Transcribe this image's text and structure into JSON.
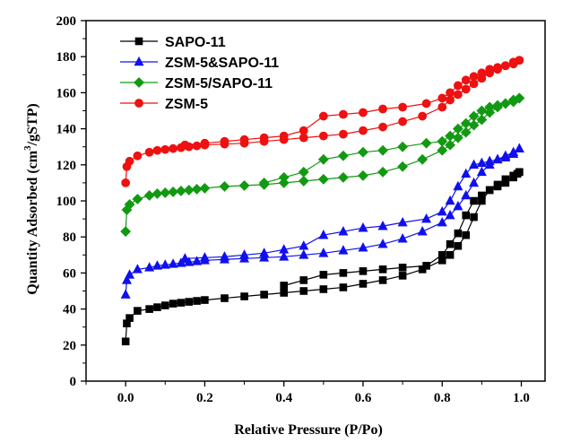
{
  "chart_data": {
    "type": "scatter",
    "xlabel": "Relative Pressure (P/Po)",
    "ylabel_main": "Quantity Adsorbed (cm",
    "ylabel_sup": "3",
    "ylabel_tail": "/gSTP)",
    "xlim": [
      -0.1,
      1.06
    ],
    "ylim": [
      0,
      200
    ],
    "x_ticks": [
      "0.0",
      "0.2",
      "0.4",
      "0.6",
      "0.8",
      "1.0"
    ],
    "y_ticks": [
      "0",
      "20",
      "40",
      "60",
      "80",
      "100",
      "120",
      "140",
      "160",
      "180",
      "200"
    ],
    "grid": false,
    "legend_position": "top-left",
    "series": [
      {
        "name": "SAPO-11",
        "color": "#000000",
        "marker": "square",
        "adsorption": [
          [
            0.0,
            22
          ],
          [
            0.003,
            32
          ],
          [
            0.01,
            35
          ],
          [
            0.03,
            39
          ],
          [
            0.06,
            40
          ],
          [
            0.08,
            41
          ],
          [
            0.1,
            42
          ],
          [
            0.12,
            43
          ],
          [
            0.14,
            43.5
          ],
          [
            0.16,
            44
          ],
          [
            0.18,
            44.5
          ],
          [
            0.2,
            45
          ],
          [
            0.25,
            46
          ],
          [
            0.3,
            47
          ],
          [
            0.35,
            48
          ],
          [
            0.4,
            49
          ],
          [
            0.45,
            50
          ],
          [
            0.5,
            51
          ],
          [
            0.55,
            52
          ],
          [
            0.6,
            54
          ],
          [
            0.65,
            56
          ],
          [
            0.7,
            58.5
          ],
          [
            0.75,
            62
          ],
          [
            0.8,
            67
          ],
          [
            0.82,
            70
          ],
          [
            0.84,
            75
          ],
          [
            0.86,
            81
          ],
          [
            0.88,
            91
          ],
          [
            0.9,
            100
          ],
          [
            0.92,
            106
          ],
          [
            0.94,
            109
          ],
          [
            0.96,
            112
          ],
          [
            0.98,
            114
          ],
          [
            0.99,
            115
          ],
          [
            0.995,
            116
          ]
        ],
        "desorption": [
          [
            0.995,
            116
          ],
          [
            0.98,
            113
          ],
          [
            0.96,
            110
          ],
          [
            0.94,
            108
          ],
          [
            0.92,
            106
          ],
          [
            0.9,
            103
          ],
          [
            0.88,
            100
          ],
          [
            0.86,
            92
          ],
          [
            0.84,
            82
          ],
          [
            0.82,
            76
          ],
          [
            0.8,
            70
          ],
          [
            0.76,
            64
          ],
          [
            0.7,
            63
          ],
          [
            0.65,
            62
          ],
          [
            0.6,
            61
          ],
          [
            0.55,
            60
          ],
          [
            0.5,
            59
          ],
          [
            0.45,
            56
          ],
          [
            0.4,
            53
          ]
        ]
      },
      {
        "name": "ZSM-5&SAPO-11",
        "color": "#1010ee",
        "marker": "triangle",
        "adsorption": [
          [
            0.0,
            48
          ],
          [
            0.003,
            56
          ],
          [
            0.01,
            59
          ],
          [
            0.03,
            62
          ],
          [
            0.06,
            63
          ],
          [
            0.08,
            64
          ],
          [
            0.1,
            64.5
          ],
          [
            0.12,
            65
          ],
          [
            0.14,
            65.5
          ],
          [
            0.16,
            66
          ],
          [
            0.18,
            66.5
          ],
          [
            0.2,
            67
          ],
          [
            0.25,
            67.5
          ],
          [
            0.3,
            68
          ],
          [
            0.35,
            68.5
          ],
          [
            0.4,
            69
          ],
          [
            0.45,
            70
          ],
          [
            0.5,
            71
          ],
          [
            0.55,
            72.5
          ],
          [
            0.6,
            74
          ],
          [
            0.65,
            76
          ],
          [
            0.7,
            79
          ],
          [
            0.75,
            83
          ],
          [
            0.8,
            88
          ],
          [
            0.82,
            92
          ],
          [
            0.84,
            97
          ],
          [
            0.86,
            103
          ],
          [
            0.88,
            110
          ],
          [
            0.9,
            116
          ],
          [
            0.92,
            120
          ],
          [
            0.94,
            123
          ],
          [
            0.96,
            125
          ],
          [
            0.98,
            127
          ],
          [
            0.995,
            129
          ]
        ],
        "desorption": [
          [
            0.995,
            129
          ],
          [
            0.98,
            126
          ],
          [
            0.96,
            124
          ],
          [
            0.94,
            123
          ],
          [
            0.92,
            122
          ],
          [
            0.9,
            121
          ],
          [
            0.88,
            120
          ],
          [
            0.86,
            115
          ],
          [
            0.84,
            108
          ],
          [
            0.82,
            100
          ],
          [
            0.8,
            94
          ],
          [
            0.76,
            90
          ],
          [
            0.7,
            88
          ],
          [
            0.65,
            86
          ],
          [
            0.6,
            85
          ],
          [
            0.55,
            83
          ],
          [
            0.5,
            81
          ],
          [
            0.45,
            75
          ],
          [
            0.4,
            73
          ],
          [
            0.35,
            71
          ],
          [
            0.3,
            70
          ],
          [
            0.25,
            69
          ],
          [
            0.2,
            68.5
          ],
          [
            0.15,
            68
          ]
        ]
      },
      {
        "name": "ZSM-5/SAPO-11",
        "color": "#119a11",
        "marker": "diamond",
        "adsorption": [
          [
            0.0,
            83
          ],
          [
            0.003,
            95
          ],
          [
            0.01,
            98
          ],
          [
            0.03,
            101
          ],
          [
            0.06,
            103
          ],
          [
            0.08,
            104
          ],
          [
            0.1,
            104.5
          ],
          [
            0.12,
            105
          ],
          [
            0.14,
            105.5
          ],
          [
            0.16,
            106
          ],
          [
            0.18,
            106.5
          ],
          [
            0.2,
            107
          ],
          [
            0.25,
            108
          ],
          [
            0.3,
            108.5
          ],
          [
            0.35,
            109
          ],
          [
            0.4,
            110
          ],
          [
            0.45,
            111
          ],
          [
            0.5,
            112
          ],
          [
            0.55,
            113
          ],
          [
            0.6,
            114
          ],
          [
            0.65,
            116
          ],
          [
            0.7,
            119
          ],
          [
            0.75,
            123
          ],
          [
            0.8,
            128
          ],
          [
            0.82,
            131
          ],
          [
            0.84,
            135
          ],
          [
            0.86,
            138
          ],
          [
            0.88,
            142
          ],
          [
            0.9,
            145
          ],
          [
            0.92,
            149
          ],
          [
            0.94,
            152
          ],
          [
            0.96,
            154
          ],
          [
            0.98,
            156
          ],
          [
            0.995,
            157
          ]
        ],
        "desorption": [
          [
            0.995,
            157
          ],
          [
            0.98,
            155
          ],
          [
            0.96,
            154
          ],
          [
            0.94,
            153
          ],
          [
            0.92,
            152
          ],
          [
            0.9,
            150
          ],
          [
            0.88,
            147
          ],
          [
            0.86,
            143
          ],
          [
            0.84,
            140
          ],
          [
            0.82,
            136
          ],
          [
            0.8,
            133
          ],
          [
            0.76,
            132
          ],
          [
            0.7,
            130
          ],
          [
            0.65,
            128
          ],
          [
            0.6,
            127
          ],
          [
            0.55,
            125
          ],
          [
            0.5,
            123
          ],
          [
            0.45,
            116
          ],
          [
            0.4,
            113
          ],
          [
            0.35,
            110
          ]
        ]
      },
      {
        "name": "ZSM-5",
        "color": "#ee1111",
        "marker": "circle",
        "adsorption": [
          [
            0.0,
            110
          ],
          [
            0.003,
            119
          ],
          [
            0.01,
            122
          ],
          [
            0.03,
            125
          ],
          [
            0.06,
            127
          ],
          [
            0.08,
            128
          ],
          [
            0.1,
            128.5
          ],
          [
            0.12,
            129
          ],
          [
            0.14,
            129.5
          ],
          [
            0.16,
            130
          ],
          [
            0.18,
            130.5
          ],
          [
            0.2,
            131
          ],
          [
            0.25,
            131.5
          ],
          [
            0.3,
            132
          ],
          [
            0.35,
            133
          ],
          [
            0.4,
            134
          ],
          [
            0.45,
            135
          ],
          [
            0.5,
            136
          ],
          [
            0.55,
            137
          ],
          [
            0.6,
            139
          ],
          [
            0.65,
            141
          ],
          [
            0.7,
            144
          ],
          [
            0.75,
            147
          ],
          [
            0.8,
            152
          ],
          [
            0.82,
            156
          ],
          [
            0.84,
            159
          ],
          [
            0.86,
            162
          ],
          [
            0.88,
            165
          ],
          [
            0.9,
            168
          ],
          [
            0.92,
            171
          ],
          [
            0.94,
            173
          ],
          [
            0.96,
            175
          ],
          [
            0.98,
            177
          ],
          [
            0.995,
            178
          ]
        ],
        "desorption": [
          [
            0.995,
            178
          ],
          [
            0.98,
            176
          ],
          [
            0.96,
            175
          ],
          [
            0.94,
            174
          ],
          [
            0.92,
            173
          ],
          [
            0.9,
            171
          ],
          [
            0.88,
            169
          ],
          [
            0.86,
            167
          ],
          [
            0.84,
            164
          ],
          [
            0.82,
            160
          ],
          [
            0.8,
            157
          ],
          [
            0.76,
            154
          ],
          [
            0.7,
            152
          ],
          [
            0.65,
            151
          ],
          [
            0.6,
            149
          ],
          [
            0.55,
            148
          ],
          [
            0.5,
            147
          ],
          [
            0.45,
            139
          ],
          [
            0.4,
            136
          ],
          [
            0.35,
            135
          ],
          [
            0.3,
            134
          ],
          [
            0.25,
            133
          ],
          [
            0.2,
            132
          ],
          [
            0.15,
            131
          ]
        ]
      }
    ]
  }
}
